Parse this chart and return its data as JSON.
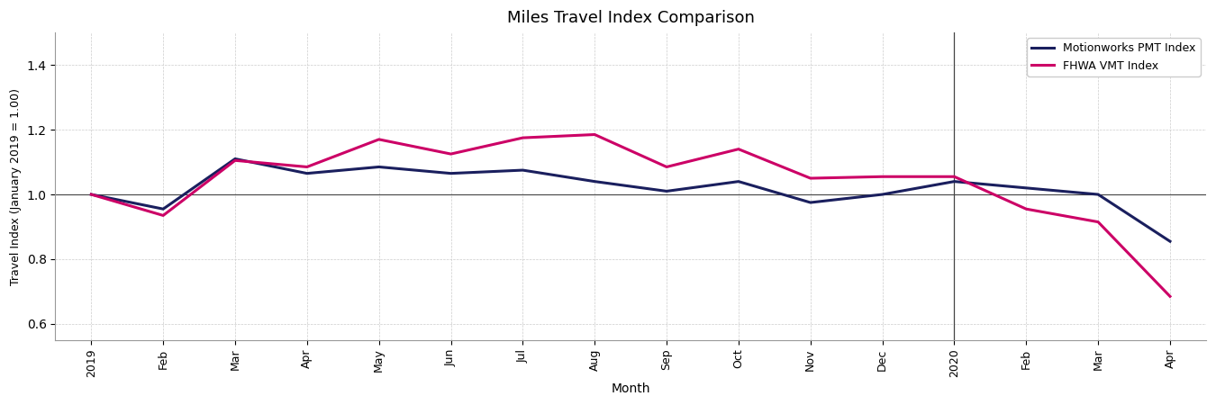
{
  "title": "Miles Travel Index Comparison",
  "xlabel": "Month",
  "ylabel": "Travel Index (January 2019 = 1.00)",
  "x_labels": [
    "2019",
    "Feb",
    "Mar",
    "Apr",
    "May",
    "Jun",
    "Jul",
    "Aug",
    "Sep",
    "Oct",
    "Nov",
    "Dec",
    "2020",
    "Feb",
    "Mar",
    "Apr"
  ],
  "pmt_values": [
    1.0,
    0.955,
    1.11,
    1.065,
    1.085,
    1.065,
    1.075,
    1.04,
    1.01,
    1.04,
    0.975,
    1.0,
    1.04,
    1.02,
    1.0,
    0.855
  ],
  "vmt_values": [
    1.0,
    0.935,
    1.105,
    1.085,
    1.17,
    1.125,
    1.175,
    1.185,
    1.085,
    1.14,
    1.05,
    1.055,
    1.055,
    0.955,
    0.915,
    0.685
  ],
  "pmt_color": "#1a1f5e",
  "vmt_color": "#cc0066",
  "pmt_label": "Motionworks PMT Index",
  "vmt_label": "FHWA VMT Index",
  "vline_x": 12,
  "hline_y": 1.0,
  "ylim": [
    0.55,
    1.5
  ],
  "yticks": [
    0.6,
    0.8,
    1.0,
    1.2,
    1.4
  ],
  "background_color": "#ffffff",
  "grid_color": "#cccccc",
  "linewidth": 2.2,
  "vline_color": "#444444",
  "hline_color": "#444444"
}
